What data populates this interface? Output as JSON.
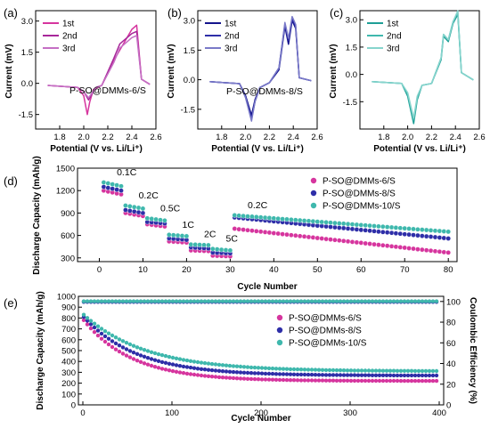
{
  "chart_data": [
    {
      "id": "a",
      "panel_label": "(a)",
      "type": "line",
      "xlabel": "Potential (V vs. Li/Li⁺)",
      "ylabel": "Current (mV)",
      "xlim": [
        1.6,
        2.6
      ],
      "ylim": [
        -2.2,
        3.5
      ],
      "xticks": [
        "1.8",
        "2.0",
        "2.2",
        "2.4",
        "2.6"
      ],
      "yticks": [
        "-1.5",
        "0.0",
        "1.5",
        "3.0"
      ],
      "annotation": "P-SO@DMMs-6/S",
      "series": [
        {
          "name": "1st",
          "color": "#d6359e",
          "x": [
            1.7,
            1.95,
            2.0,
            2.03,
            2.05,
            2.08,
            2.15,
            2.25,
            2.3,
            2.4,
            2.44,
            2.48,
            2.55
          ],
          "y": [
            -0.1,
            -0.2,
            -0.6,
            -1.5,
            -0.9,
            -0.3,
            -0.1,
            1.1,
            1.6,
            2.6,
            2.8,
            0.2,
            -0.05
          ]
        },
        {
          "name": "2nd",
          "color": "#a8289a",
          "x": [
            1.7,
            1.95,
            2.0,
            2.04,
            2.07,
            2.1,
            2.15,
            2.25,
            2.3,
            2.4,
            2.44,
            2.48,
            2.55
          ],
          "y": [
            -0.1,
            -0.2,
            -0.4,
            -0.8,
            -0.5,
            -0.2,
            -0.1,
            1.2,
            1.9,
            2.4,
            2.5,
            0.2,
            -0.05
          ]
        },
        {
          "name": "3rd",
          "color": "#c56fc4",
          "x": [
            1.7,
            1.95,
            2.0,
            2.04,
            2.07,
            2.1,
            2.15,
            2.25,
            2.3,
            2.4,
            2.44,
            2.48,
            2.55
          ],
          "y": [
            -0.1,
            -0.2,
            -0.4,
            -0.7,
            -0.45,
            -0.2,
            -0.1,
            1.0,
            1.7,
            2.2,
            2.3,
            0.2,
            -0.05
          ]
        }
      ]
    },
    {
      "id": "b",
      "panel_label": "(b)",
      "type": "line",
      "xlabel": "Potential (V vs. Li/Li⁺)",
      "ylabel": "Current (mV)",
      "xlim": [
        1.6,
        2.6
      ],
      "ylim": [
        -2.5,
        3.5
      ],
      "xticks": [
        "1.8",
        "2.0",
        "2.2",
        "2.4",
        "2.6"
      ],
      "yticks": [
        "-1.5",
        "0.0",
        "1.5",
        "3.0"
      ],
      "annotation": "P-SO@DMMs-8/S",
      "series": [
        {
          "name": "1st",
          "color": "#14148c",
          "x": [
            1.7,
            1.95,
            2.0,
            2.05,
            2.08,
            2.12,
            2.2,
            2.28,
            2.33,
            2.36,
            2.39,
            2.42,
            2.45,
            2.55
          ],
          "y": [
            -0.1,
            -0.2,
            -0.8,
            -1.8,
            -1.0,
            -0.4,
            -0.15,
            0.5,
            2.7,
            1.8,
            3.0,
            2.6,
            0.1,
            -0.05
          ]
        },
        {
          "name": "2nd",
          "color": "#2e2ea8",
          "x": [
            1.7,
            1.95,
            2.0,
            2.05,
            2.08,
            2.12,
            2.2,
            2.28,
            2.33,
            2.36,
            2.39,
            2.42,
            2.45,
            2.55
          ],
          "y": [
            -0.1,
            -0.2,
            -0.9,
            -2.0,
            -1.1,
            -0.4,
            -0.15,
            0.6,
            2.8,
            2.0,
            3.1,
            2.7,
            0.1,
            -0.05
          ]
        },
        {
          "name": "3rd",
          "color": "#7a7ac8",
          "x": [
            1.7,
            1.95,
            2.0,
            2.05,
            2.08,
            2.12,
            2.2,
            2.28,
            2.33,
            2.36,
            2.39,
            2.42,
            2.45,
            2.55
          ],
          "y": [
            -0.1,
            -0.2,
            -0.9,
            -2.1,
            -1.1,
            -0.4,
            -0.15,
            0.6,
            2.9,
            2.1,
            3.2,
            2.8,
            0.1,
            -0.05
          ]
        }
      ]
    },
    {
      "id": "c",
      "panel_label": "(c)",
      "type": "line",
      "xlabel": "Potential (V vs. Li/Li⁺)",
      "ylabel": "Current (mV)",
      "xlim": [
        1.6,
        2.6
      ],
      "ylim": [
        -3.0,
        3.5
      ],
      "xticks": [
        "1.8",
        "2.0",
        "2.2",
        "2.4",
        "2.6"
      ],
      "yticks": [
        "-1.5",
        "0.0",
        "1.5",
        "3.0"
      ],
      "annotation": "",
      "series": [
        {
          "name": "1st",
          "color": "#1e9e96",
          "x": [
            1.7,
            1.95,
            2.0,
            2.05,
            2.08,
            2.12,
            2.2,
            2.28,
            2.3,
            2.34,
            2.38,
            2.42,
            2.45,
            2.55
          ],
          "y": [
            -0.4,
            -0.5,
            -1.2,
            -2.7,
            -1.4,
            -0.6,
            -0.5,
            0.8,
            2.1,
            1.8,
            2.8,
            3.3,
            0.1,
            -0.3
          ]
        },
        {
          "name": "2nd",
          "color": "#3fb8ad",
          "x": [
            1.7,
            1.95,
            2.0,
            2.05,
            2.08,
            2.12,
            2.2,
            2.28,
            2.3,
            2.34,
            2.38,
            2.42,
            2.45,
            2.55
          ],
          "y": [
            -0.4,
            -0.5,
            -1.1,
            -2.5,
            -1.3,
            -0.6,
            -0.5,
            0.9,
            2.2,
            1.9,
            2.9,
            3.4,
            0.1,
            -0.3
          ]
        },
        {
          "name": "3rd",
          "color": "#86d4cd",
          "x": [
            1.7,
            1.95,
            2.0,
            2.05,
            2.08,
            2.12,
            2.2,
            2.28,
            2.3,
            2.34,
            2.38,
            2.42,
            2.45,
            2.55
          ],
          "y": [
            -0.4,
            -0.5,
            -1.0,
            -2.4,
            -1.2,
            -0.6,
            -0.5,
            0.9,
            2.2,
            1.9,
            2.9,
            3.5,
            0.1,
            -0.3
          ]
        }
      ]
    },
    {
      "id": "d",
      "panel_label": "(d)",
      "type": "scatter",
      "xlabel": "Cycle Number",
      "ylabel": "Discharge Capacity (mAh/g)",
      "xlim": [
        -5,
        82
      ],
      "ylim": [
        250,
        1500
      ],
      "xticks": [
        "0",
        "10",
        "20",
        "30",
        "40",
        "50",
        "60",
        "70",
        "80"
      ],
      "yticks": [
        "300",
        "600",
        "900",
        "1200",
        "1500"
      ],
      "rate_labels": [
        "0.1C",
        "0.2C",
        "0.5C",
        "1C",
        "2C",
        "5C",
        "0.2C"
      ],
      "series": [
        {
          "name": "P-SO@DMMs-6/S",
          "color": "#d6359e",
          "steps": [
            [
              1,
              5,
              1200,
              1150
            ],
            [
              6,
              10,
              900,
              860
            ],
            [
              11,
              15,
              750,
              720
            ],
            [
              16,
              20,
              520,
              505
            ],
            [
              21,
              25,
              400,
              390
            ],
            [
              26,
              30,
              330,
              320
            ],
            [
              31,
              80,
              690,
              370
            ]
          ]
        },
        {
          "name": "P-SO@DMMs-8/S",
          "color": "#2e2ea8",
          "steps": [
            [
              1,
              5,
              1250,
              1200
            ],
            [
              6,
              10,
              940,
              900
            ],
            [
              11,
              15,
              780,
              760
            ],
            [
              16,
              20,
              560,
              540
            ],
            [
              21,
              25,
              440,
              425
            ],
            [
              26,
              30,
              370,
              360
            ],
            [
              31,
              80,
              840,
              560
            ]
          ]
        },
        {
          "name": "P-SO@DMMs-10/S",
          "color": "#3fb8ad",
          "steps": [
            [
              1,
              5,
              1310,
              1260
            ],
            [
              6,
              10,
              1000,
              960
            ],
            [
              11,
              15,
              830,
              800
            ],
            [
              16,
              20,
              610,
              590
            ],
            [
              21,
              25,
              480,
              470
            ],
            [
              26,
              30,
              420,
              400
            ],
            [
              31,
              80,
              870,
              650
            ]
          ]
        }
      ]
    },
    {
      "id": "e",
      "panel_label": "(e)",
      "type": "scatter",
      "xlabel": "Cycle Number",
      "ylabel": "Discharge Capacity (mAh/g)",
      "ylabel2": "Coulombic Efficiency (%)",
      "xlim": [
        -5,
        405
      ],
      "ylim": [
        0,
        1000
      ],
      "ylim2": [
        0,
        105
      ],
      "xticks": [
        "0",
        "100",
        "200",
        "300",
        "400"
      ],
      "yticks": [
        "0",
        "100",
        "200",
        "300",
        "400",
        "500",
        "600",
        "700",
        "800",
        "900",
        "1000"
      ],
      "yticks2": [
        "0",
        "20",
        "40",
        "60",
        "80",
        "100"
      ],
      "series": [
        {
          "name": "P-SO@DMMs-6/S",
          "color": "#d6359e",
          "start": 780,
          "end": 220,
          "decay": 55,
          "ce": 100
        },
        {
          "name": "P-SO@DMMs-8/S",
          "color": "#2e2ea8",
          "start": 810,
          "end": 270,
          "decay": 60,
          "ce": 100
        },
        {
          "name": "P-SO@DMMs-10/S",
          "color": "#3fb8ad",
          "start": 830,
          "end": 310,
          "decay": 70,
          "ce": 101
        }
      ]
    }
  ]
}
